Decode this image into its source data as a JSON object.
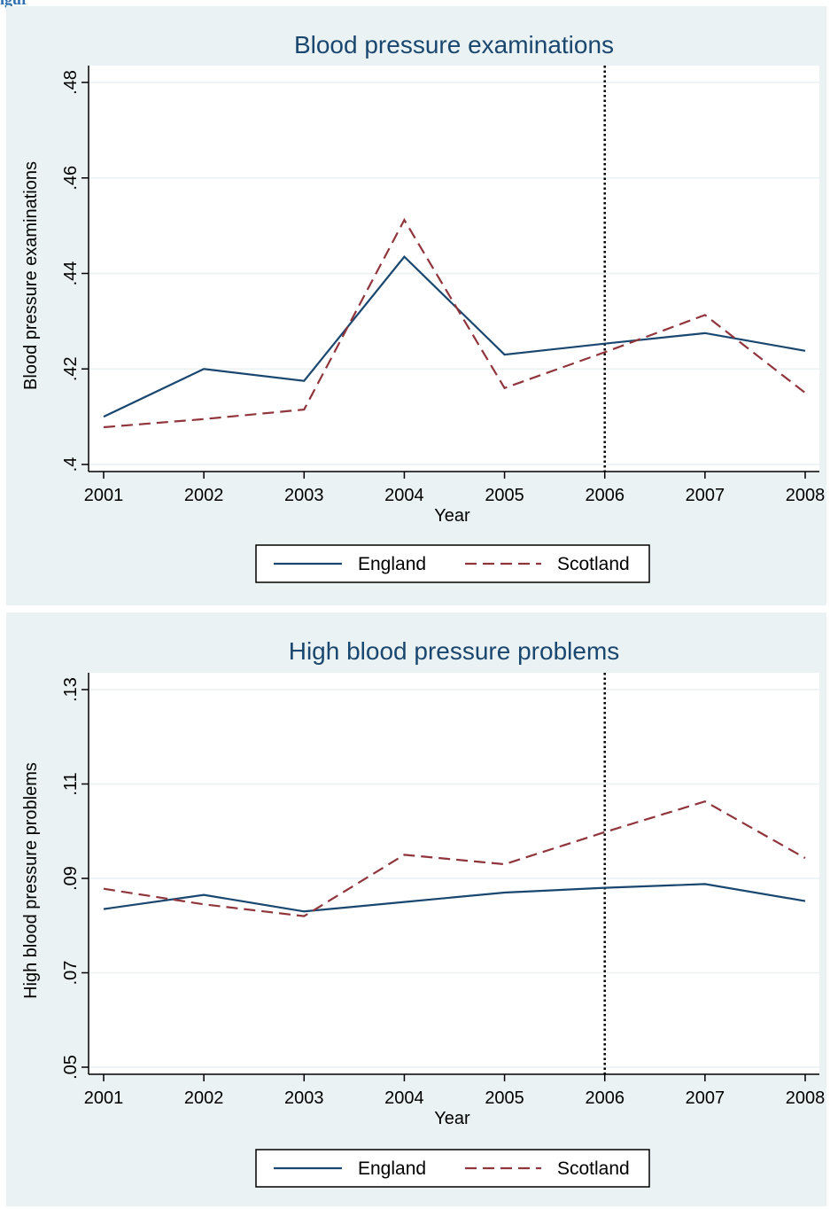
{
  "page_heading_fragment": "igure",
  "colors": {
    "background": "#eaf2f3",
    "plot": "#ffffff",
    "england": "#1a476f",
    "scotland": "#90353b",
    "title": "#1a476f"
  },
  "chart_data": [
    {
      "type": "line",
      "title": "Blood pressure examinations",
      "xlabel": "Year",
      "ylabel": "Blood pressure examinations",
      "x": [
        2001,
        2002,
        2003,
        2004,
        2005,
        2006,
        2007,
        2008
      ],
      "xlim": [
        2001,
        2008
      ],
      "ylim": [
        0.4,
        0.48
      ],
      "yticks": [
        0.4,
        0.42,
        0.44,
        0.46,
        0.48
      ],
      "ytick_labels": [
        ".4",
        ".42",
        ".44",
        ".46",
        ".48"
      ],
      "vline": 2006,
      "grid": true,
      "legend_position": "bottom",
      "series": [
        {
          "name": "England",
          "style": "solid",
          "color": "#1a476f",
          "values": [
            0.41,
            0.42,
            0.4175,
            0.4435,
            0.423,
            0.4253,
            0.4275,
            0.4238
          ]
        },
        {
          "name": "Scotland",
          "style": "dashed",
          "color": "#90353b",
          "values": [
            0.4078,
            0.4095,
            0.4115,
            0.4512,
            0.416,
            0.4235,
            0.4313,
            0.415
          ]
        }
      ]
    },
    {
      "type": "line",
      "title": "High blood pressure problems",
      "xlabel": "Year",
      "ylabel": "High blood pressure problems",
      "x": [
        2001,
        2002,
        2003,
        2004,
        2005,
        2006,
        2007,
        2008
      ],
      "xlim": [
        2001,
        2008
      ],
      "ylim": [
        0.05,
        0.13
      ],
      "yticks": [
        0.05,
        0.07,
        0.09,
        0.11,
        0.13
      ],
      "ytick_labels": [
        ".05",
        ".07",
        ".09",
        ".11",
        ".13"
      ],
      "vline": 2006,
      "grid": true,
      "legend_position": "bottom",
      "series": [
        {
          "name": "England",
          "style": "solid",
          "color": "#1a476f",
          "values": [
            0.0835,
            0.0865,
            0.083,
            0.085,
            0.087,
            0.088,
            0.0888,
            0.0852
          ]
        },
        {
          "name": "Scotland",
          "style": "dashed",
          "color": "#90353b",
          "values": [
            0.0878,
            0.0845,
            0.082,
            0.095,
            0.093,
            0.0998,
            0.1063,
            0.0943
          ]
        }
      ]
    }
  ]
}
